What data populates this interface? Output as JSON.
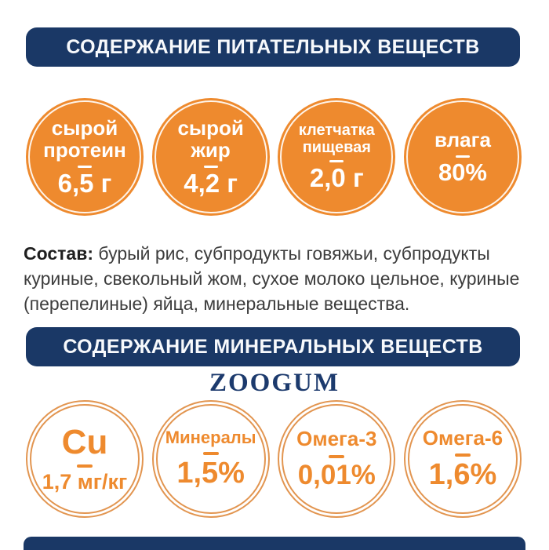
{
  "colors": {
    "navy": "#1a3866",
    "orange": "#ee8a2e",
    "ring_orange": "#e29550",
    "body_text": "#3d3d3d"
  },
  "section1": {
    "title": "СОДЕРЖАНИЕ ПИТАТЕЛЬНЫХ ВЕЩЕСТВ",
    "circles": [
      {
        "line1": "сырой",
        "line2": "протеин",
        "value": "6,5 г"
      },
      {
        "line1": "сырой",
        "line2": "жир",
        "value": "4,2 г"
      },
      {
        "line1": "клетчатка",
        "line2": "пищевая",
        "value": "2,0 г"
      },
      {
        "line1": "влага",
        "line2": "",
        "value": "80%"
      }
    ]
  },
  "composition": {
    "label": "Состав:",
    "text": "бурый рис, субпродукты говяжьи, субпродукты куриные, свекольный жом, сухое молоко цельное, куриные (перепелиные) яйца, минеральные вещества."
  },
  "section2": {
    "title": "СОДЕРЖАНИЕ МИНЕРАЛЬНЫХ ВЕЩЕСТВ",
    "brand": "ZOOGUM",
    "circles": [
      {
        "label": "Cu",
        "value": "1,7 мг/кг"
      },
      {
        "label": "Минералы",
        "value": "1,5%"
      },
      {
        "label": "Омега-3",
        "value": "0,01%"
      },
      {
        "label": "Омега-6",
        "value": "1,6%"
      }
    ]
  }
}
